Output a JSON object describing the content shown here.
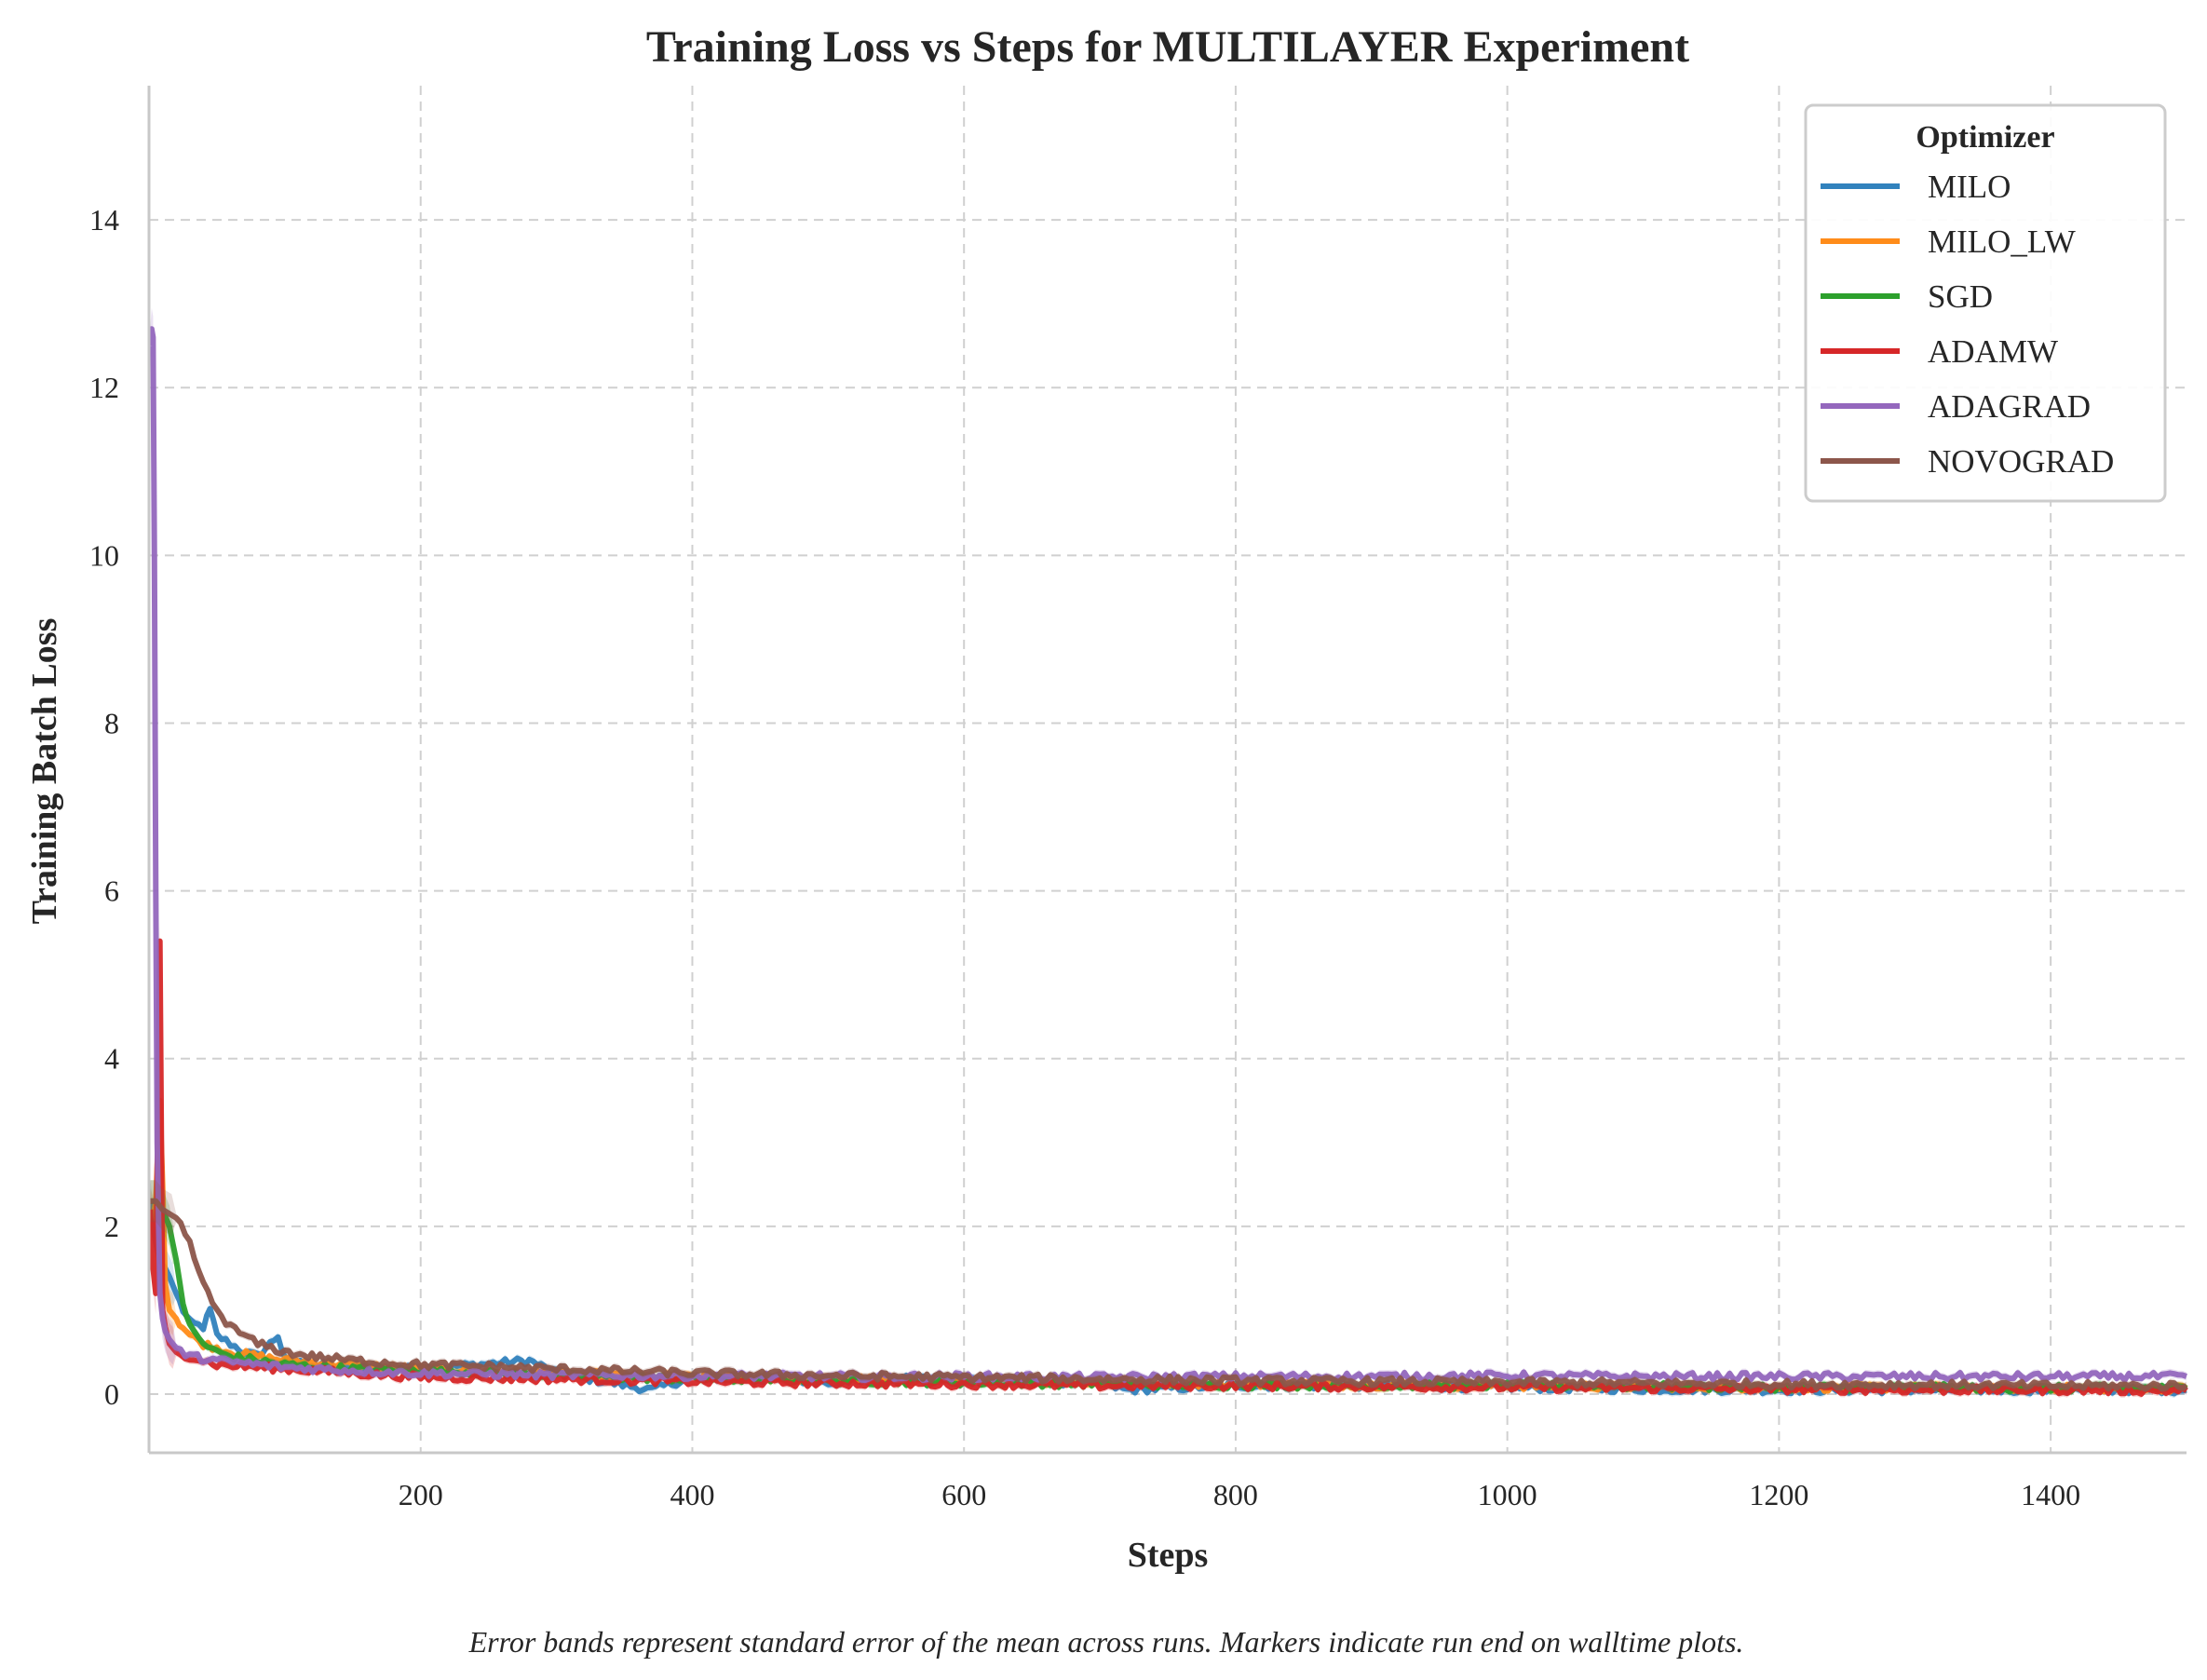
{
  "chart_data": {
    "type": "line",
    "title": "Training Loss vs Steps for MULTILAYER Experiment",
    "xlabel": "Steps",
    "ylabel": "Training Batch Loss",
    "xlim": [
      0,
      1500
    ],
    "ylim": [
      -0.7,
      15.6
    ],
    "xticks": [
      200,
      400,
      600,
      800,
      1000,
      1200,
      1400
    ],
    "yticks": [
      0,
      2,
      4,
      6,
      8,
      10,
      12,
      14
    ],
    "grid": true,
    "legend": {
      "title": "Optimizer",
      "placement": "top-right"
    },
    "footnote": "Error bands represent standard error of the mean across runs. Markers indicate run end on walltime plots.",
    "series": [
      {
        "name": "MILO",
        "color": "#3182bd",
        "x": [
          1,
          3,
          5,
          8,
          12,
          15,
          20,
          25,
          30,
          40,
          45,
          50,
          60,
          70,
          80,
          95,
          100,
          120,
          140,
          160,
          200,
          280,
          300,
          370,
          400,
          500,
          600,
          700,
          720,
          800,
          900,
          1000,
          1100,
          1200,
          1300,
          1400,
          1500
        ],
        "y": [
          2.3,
          2.0,
          1.8,
          1.6,
          1.5,
          1.4,
          1.2,
          1.0,
          0.85,
          0.8,
          1.0,
          0.7,
          0.6,
          0.5,
          0.45,
          0.7,
          0.4,
          0.35,
          0.33,
          0.3,
          0.3,
          0.4,
          0.25,
          0.05,
          0.2,
          0.15,
          0.2,
          0.12,
          0.05,
          0.1,
          0.1,
          0.08,
          0.06,
          0.05,
          0.05,
          0.05,
          0.05
        ]
      },
      {
        "name": "MILO_LW",
        "color": "#ff8c1a",
        "x": [
          1,
          3,
          5,
          8,
          10,
          12,
          15,
          20,
          25,
          30,
          40,
          50,
          60,
          80,
          100,
          150,
          200,
          300,
          400,
          500,
          600,
          700,
          800,
          900,
          1000,
          1100,
          1200,
          1300,
          1400,
          1500
        ],
        "y": [
          2.2,
          2.1,
          2.3,
          3.5,
          2.5,
          1.3,
          1.0,
          0.9,
          0.8,
          0.7,
          0.6,
          0.55,
          0.5,
          0.45,
          0.4,
          0.35,
          0.3,
          0.25,
          0.2,
          0.18,
          0.16,
          0.14,
          0.12,
          0.11,
          0.1,
          0.09,
          0.08,
          0.08,
          0.07,
          0.07
        ]
      },
      {
        "name": "SGD",
        "color": "#2ca02c",
        "x": [
          1,
          5,
          10,
          15,
          20,
          25,
          30,
          40,
          50,
          60,
          80,
          100,
          150,
          200,
          300,
          400,
          500,
          600,
          700,
          800,
          900,
          1000,
          1100,
          1200,
          1300,
          1400,
          1500
        ],
        "y": [
          2.3,
          2.3,
          2.2,
          2.0,
          1.6,
          1.1,
          0.8,
          0.6,
          0.5,
          0.45,
          0.4,
          0.35,
          0.3,
          0.28,
          0.22,
          0.18,
          0.16,
          0.14,
          0.12,
          0.11,
          0.1,
          0.1,
          0.09,
          0.08,
          0.08,
          0.07,
          0.07
        ]
      },
      {
        "name": "ADAMW",
        "color": "#d62728",
        "x": [
          1,
          3,
          5,
          8,
          10,
          12,
          15,
          20,
          30,
          40,
          50,
          100,
          150,
          200,
          300,
          400,
          500,
          600,
          700,
          800,
          900,
          1000,
          1100,
          1200,
          1300,
          1400,
          1500
        ],
        "y": [
          2.2,
          1.5,
          1.2,
          5.4,
          1.0,
          0.8,
          0.6,
          0.5,
          0.45,
          0.4,
          0.35,
          0.3,
          0.25,
          0.2,
          0.18,
          0.15,
          0.13,
          0.12,
          0.1,
          0.1,
          0.09,
          0.08,
          0.07,
          0.06,
          0.05,
          0.05,
          0.04
        ]
      },
      {
        "name": "ADAGRAD",
        "color": "#9467bd",
        "x": [
          1,
          2,
          3,
          4,
          5,
          6,
          8,
          10,
          12,
          15,
          20,
          30,
          50,
          100,
          150,
          200,
          300,
          400,
          500,
          600,
          700,
          800,
          900,
          1000,
          1100,
          1200,
          1300,
          1400,
          1500
        ],
        "y": [
          12.5,
          12.7,
          12.6,
          10.0,
          6.0,
          3.0,
          1.2,
          0.9,
          0.75,
          0.65,
          0.55,
          0.45,
          0.4,
          0.32,
          0.28,
          0.25,
          0.23,
          0.22,
          0.21,
          0.21,
          0.2,
          0.21,
          0.21,
          0.22,
          0.21,
          0.21,
          0.21,
          0.21,
          0.21
        ]
      },
      {
        "name": "NOVOGRAD",
        "color": "#8c564b",
        "x": [
          1,
          5,
          10,
          20,
          30,
          40,
          50,
          60,
          70,
          80,
          90,
          100,
          120,
          150,
          200,
          250,
          300,
          400,
          500,
          600,
          700,
          800,
          900,
          1000,
          1100,
          1200,
          1300,
          1400,
          1500
        ],
        "y": [
          2.3,
          2.3,
          2.2,
          2.1,
          1.8,
          1.3,
          1.0,
          0.8,
          0.7,
          0.6,
          0.55,
          0.5,
          0.45,
          0.4,
          0.35,
          0.33,
          0.3,
          0.25,
          0.22,
          0.2,
          0.18,
          0.16,
          0.15,
          0.14,
          0.13,
          0.12,
          0.11,
          0.1,
          0.1
        ]
      }
    ]
  }
}
